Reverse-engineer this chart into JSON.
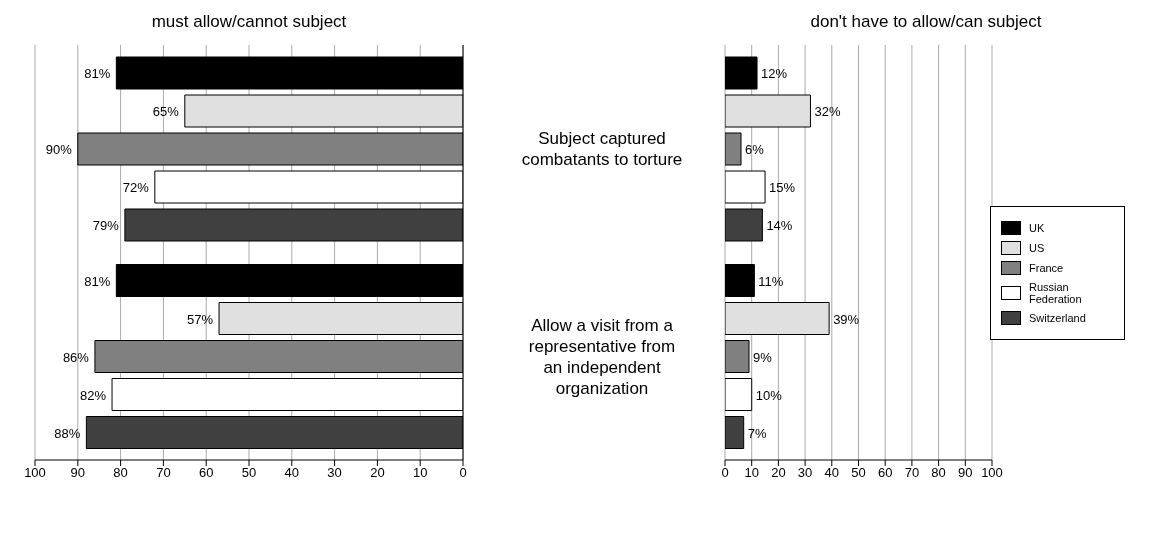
{
  "chart_data": [
    {
      "type": "bar",
      "orientation": "horizontal",
      "title": "must allow/cannot subject",
      "categories": [
        "Subject captured combatants to torture",
        "Allow a visit from a representative from an independent organization"
      ],
      "xlim": [
        100,
        0
      ],
      "xticks": [
        100,
        90,
        80,
        70,
        60,
        50,
        40,
        30,
        20,
        10,
        0
      ],
      "grid": "x",
      "legend": false,
      "series": [
        {
          "color": "#000000",
          "values": [
            81,
            81
          ],
          "value_labels": [
            "81%",
            "81%"
          ]
        },
        {
          "color": "#e0e0e0",
          "values": [
            65,
            57
          ],
          "value_labels": [
            "65%",
            "57%"
          ]
        },
        {
          "color": "#808080",
          "values": [
            90,
            86
          ],
          "value_labels": [
            "90%",
            "86%"
          ]
        },
        {
          "color": "#ffffff",
          "values": [
            72,
            82
          ],
          "value_labels": [
            "72%",
            "82%"
          ]
        },
        {
          "color": "#404040",
          "values": [
            79,
            88
          ],
          "value_labels": [
            "79%",
            "88%"
          ]
        }
      ]
    },
    {
      "type": "bar",
      "orientation": "horizontal",
      "title": "don't have to allow/can subject",
      "categories": [
        null,
        null
      ],
      "xlim": [
        0,
        100
      ],
      "xticks": [
        0,
        10,
        20,
        30,
        40,
        50,
        60,
        70,
        80,
        90,
        100
      ],
      "grid": "x",
      "legend": "right",
      "tick_labels": "x",
      "series": [
        {
          "name": "UK",
          "color": "#000000",
          "values": [
            12,
            11
          ],
          "value_labels": [
            "12%",
            "11%"
          ]
        },
        {
          "name": "US",
          "color": "#e0e0e0",
          "values": [
            32,
            39
          ],
          "value_labels": [
            "32%",
            "39%"
          ]
        },
        {
          "name": "France",
          "color": "#808080",
          "values": [
            6,
            9
          ],
          "value_labels": [
            "6%",
            "9%"
          ]
        },
        {
          "name": "Russian Federation",
          "color": "#ffffff",
          "values": [
            15,
            10
          ],
          "value_labels": [
            "15%",
            "10%"
          ]
        },
        {
          "name": "Switzerland",
          "color": "#404040",
          "values": [
            14,
            7
          ],
          "value_labels": [
            "14%",
            "7%"
          ]
        }
      ]
    }
  ]
}
